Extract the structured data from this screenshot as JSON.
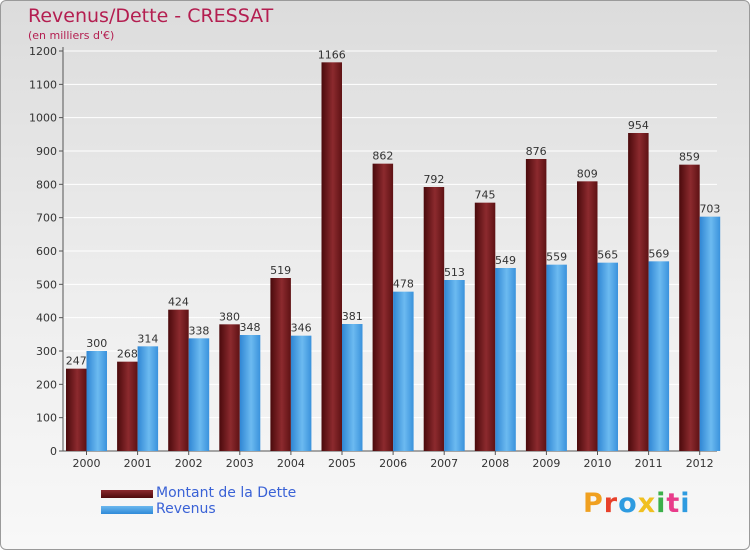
{
  "chart_data": {
    "type": "bar",
    "title": "Revenus/Dette - CRESSAT",
    "subtitle": "(en milliers d'€)",
    "categories": [
      "2000",
      "2001",
      "2002",
      "2003",
      "2004",
      "2005",
      "2006",
      "2007",
      "2008",
      "2009",
      "2010",
      "2011",
      "2012"
    ],
    "series": [
      {
        "name": "Montant de la Dette",
        "values": [
          247,
          268,
          424,
          380,
          519,
          1166,
          862,
          792,
          745,
          876,
          809,
          954,
          859
        ],
        "color": "#6e1a1c"
      },
      {
        "name": "Revenus",
        "values": [
          300,
          314,
          338,
          348,
          346,
          381,
          478,
          513,
          549,
          559,
          565,
          569,
          703
        ],
        "color": "#4aa6ea"
      }
    ],
    "ylim": [
      0,
      1200
    ],
    "yticks": [
      0,
      100,
      200,
      300,
      400,
      500,
      600,
      700,
      800,
      900,
      1000,
      1100,
      1200
    ],
    "grid": true,
    "legend_position": "bottom-left"
  },
  "branding": {
    "logo_letters": [
      "P",
      "r",
      "o",
      "x",
      "i",
      "t",
      "i"
    ],
    "logo_colors": [
      "#f0a020",
      "#e8402a",
      "#2e9be0",
      "#f0c020",
      "#3cb04a",
      "#e83c8a",
      "#2e9be0"
    ]
  }
}
